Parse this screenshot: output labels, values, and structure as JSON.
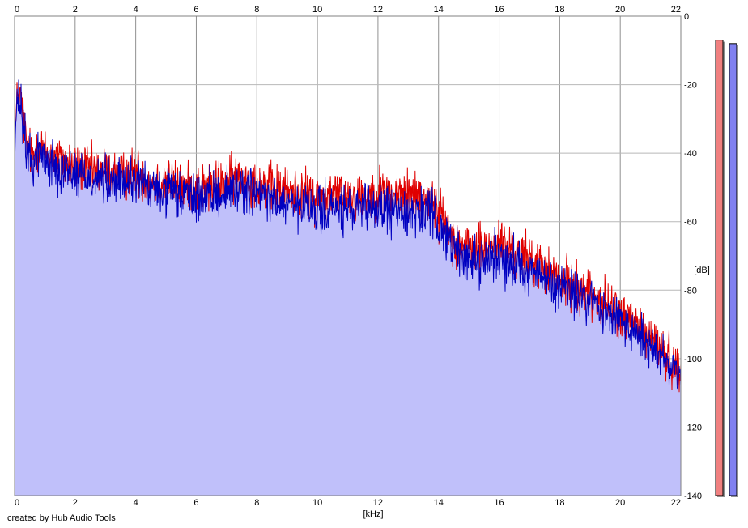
{
  "chart_data": {
    "type": "area",
    "credit": "created by Hub Audio Tools",
    "xlabel": "[kHz]",
    "ylabel": "[dB]",
    "xlim": [
      0,
      22
    ],
    "ylim": [
      -140,
      0
    ],
    "x_ticks": [
      "0",
      "2",
      "4",
      "6",
      "8",
      "10",
      "12",
      "14",
      "16",
      "18",
      "20",
      "22"
    ],
    "y_ticks": [
      "0",
      "-20",
      "-40",
      "-60",
      "-80",
      "-100",
      "-120",
      "-140"
    ],
    "grid": true,
    "colors": {
      "channel_a_line": "#e00000",
      "channel_a_fill": "#f4c0c0",
      "channel_b_line": "#0000c0",
      "channel_b_fill": "#c0c0fa",
      "grid": "#b8b8b8",
      "grid_major": "#909090",
      "meter_a": "#f08080",
      "meter_b": "#8080f0"
    },
    "series": [
      {
        "key": "a",
        "x": [
          0,
          0.1,
          0.2,
          0.4,
          0.6,
          0.8,
          1,
          1.25,
          1.5,
          1.75,
          2,
          2.5,
          3,
          3.5,
          4,
          4.5,
          5,
          5.5,
          6,
          6.5,
          7,
          7.5,
          8,
          8.5,
          9,
          9.5,
          10,
          10.5,
          11,
          11.5,
          12,
          12.5,
          13,
          13.5,
          14,
          14.5,
          15,
          15.5,
          16,
          16.5,
          17,
          17.5,
          18,
          18.5,
          19,
          19.5,
          20,
          20.5,
          21,
          21.5,
          22
        ],
        "values": [
          -38,
          -22,
          -24,
          -38,
          -41,
          -37,
          -40,
          -41,
          -42,
          -43,
          -44,
          -45,
          -45,
          -47,
          -45,
          -49,
          -48,
          -50,
          -50,
          -50,
          -48,
          -47,
          -49,
          -50,
          -51,
          -52,
          -53,
          -52,
          -52,
          -53,
          -51,
          -52,
          -52,
          -52,
          -57,
          -65,
          -68,
          -68,
          -66,
          -69,
          -71,
          -74,
          -77,
          -79,
          -81,
          -84,
          -87,
          -90,
          -94,
          -99,
          -104
        ]
      },
      {
        "key": "b",
        "x": [
          0,
          0.1,
          0.2,
          0.4,
          0.6,
          0.8,
          1,
          1.25,
          1.5,
          1.75,
          2,
          2.5,
          3,
          3.5,
          4,
          4.5,
          5,
          5.5,
          6,
          6.5,
          7,
          7.5,
          8,
          8.5,
          9,
          9.5,
          10,
          10.5,
          11,
          11.5,
          12,
          12.5,
          13,
          13.5,
          14,
          14.5,
          15,
          15.5,
          16,
          16.5,
          17,
          17.5,
          18,
          18.5,
          19,
          19.5,
          20,
          20.5,
          21,
          21.5,
          22
        ],
        "values": [
          -40,
          -24,
          -26,
          -40,
          -43,
          -39,
          -42,
          -43,
          -44,
          -45,
          -46,
          -47,
          -48,
          -49,
          -47,
          -51,
          -51,
          -52,
          -53,
          -53,
          -51,
          -50,
          -52,
          -54,
          -55,
          -56,
          -57,
          -56,
          -57,
          -57,
          -56,
          -57,
          -57,
          -57,
          -60,
          -68,
          -71,
          -71,
          -70,
          -72,
          -74,
          -77,
          -79,
          -81,
          -83,
          -86,
          -89,
          -92,
          -96,
          -100,
          -105
        ]
      }
    ],
    "meters": [
      {
        "key": "a",
        "value": -7
      },
      {
        "key": "b",
        "value": -8
      }
    ]
  }
}
